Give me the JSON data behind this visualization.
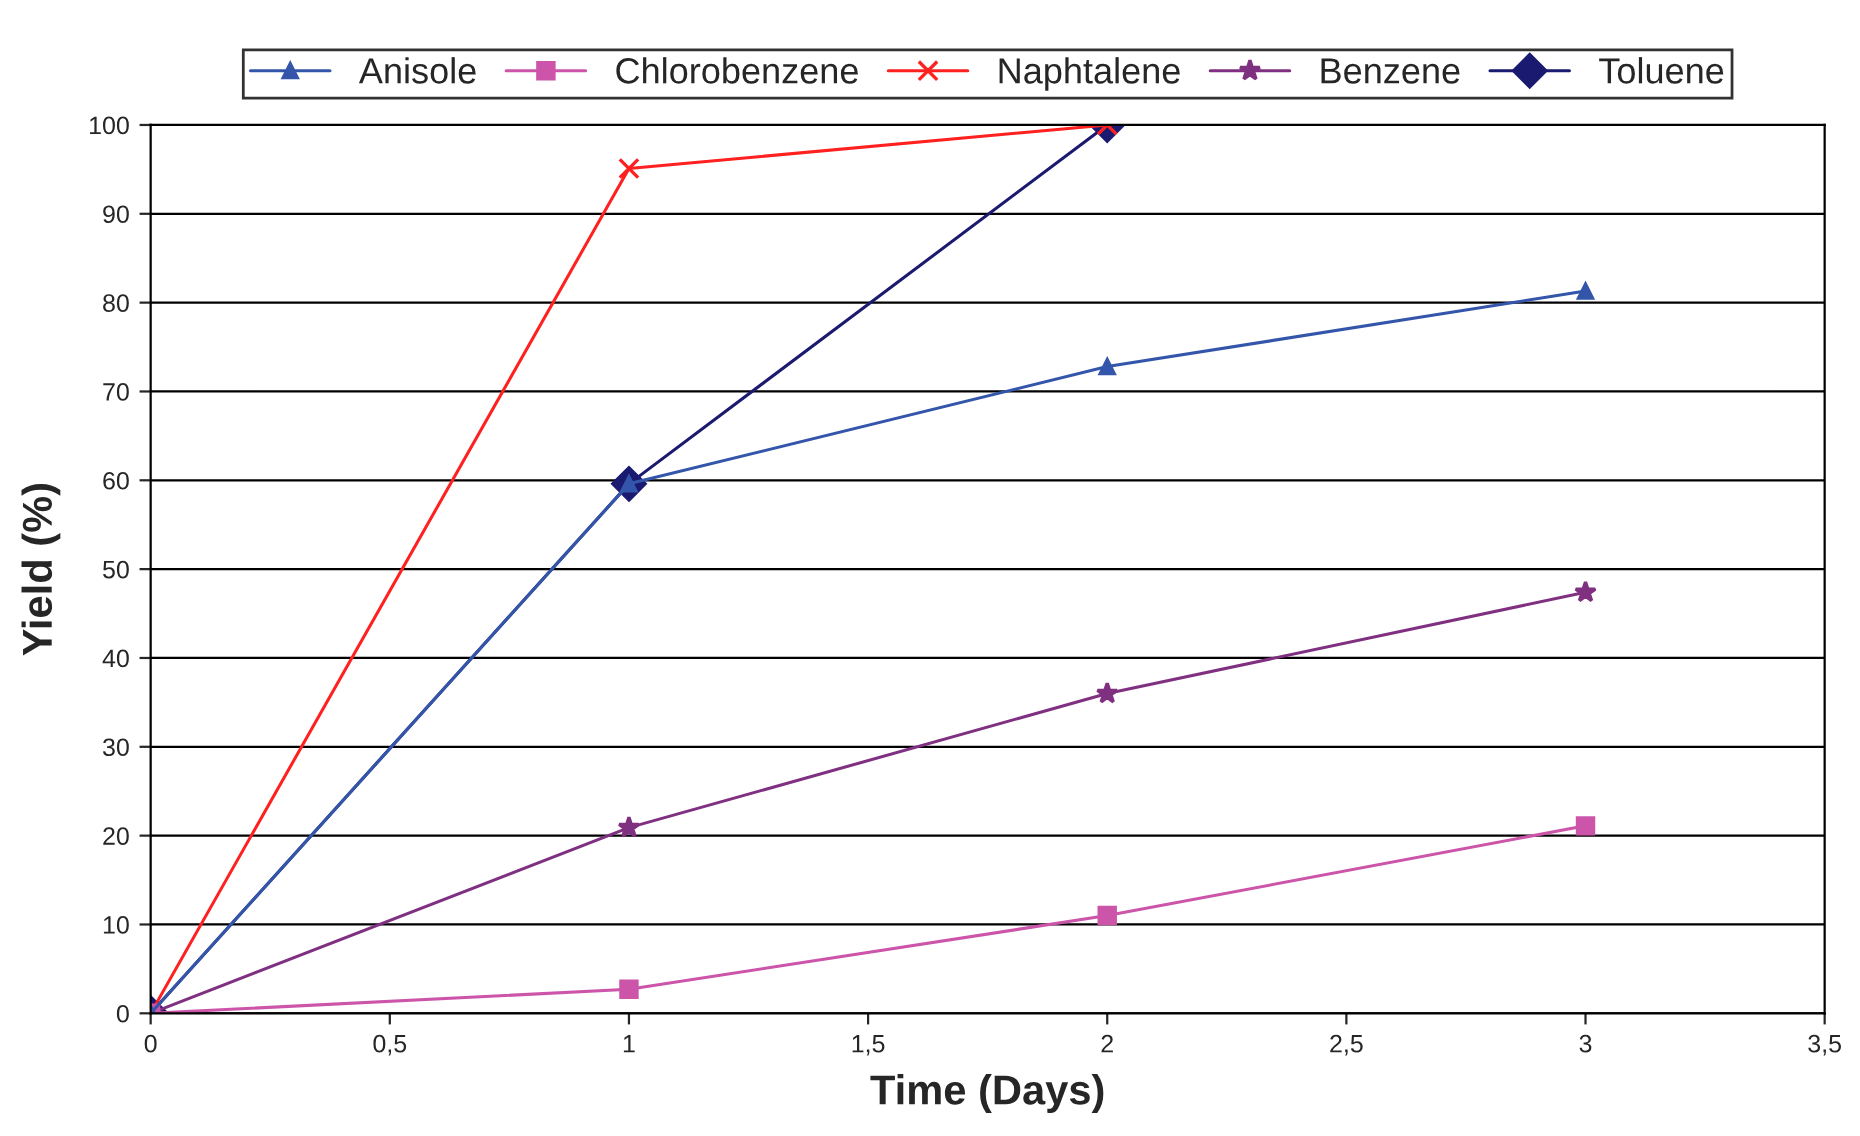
{
  "chart_data": {
    "type": "line",
    "xlabel": "Time (Days)",
    "ylabel": "Yield (%)",
    "xlim": [
      0,
      3.5
    ],
    "xticks": [
      0,
      {
        "value": 0.5,
        "label": "0,5"
      },
      1,
      {
        "value": 1.5,
        "label": "1,5"
      },
      2,
      {
        "value": 2.5,
        "label": "2,5"
      },
      3,
      {
        "value": 3.5,
        "label": "3,5"
      }
    ],
    "ylim": [
      0,
      100
    ],
    "yticks": [
      0,
      10,
      20,
      30,
      40,
      50,
      60,
      70,
      80,
      90,
      100
    ],
    "grid": "y",
    "legend": "top",
    "line_style": "solid",
    "series": [
      {
        "name": "Anisole",
        "color": "#3355aa",
        "marker": "triangle",
        "x": [
          0,
          1,
          2,
          3
        ],
        "values": [
          0,
          59.6,
          72.8,
          81.3
        ]
      },
      {
        "name": "Chlorobenzene",
        "color": "#cc55aa",
        "marker": "square",
        "x": [
          0,
          1,
          2,
          3
        ],
        "values": [
          0,
          2.7,
          11.0,
          21.1
        ]
      },
      {
        "name": "Naphtalene",
        "color": "#ff2020",
        "marker": "cross",
        "x": [
          0,
          1,
          2
        ],
        "values": [
          0,
          95.1,
          100
        ]
      },
      {
        "name": "Benzene",
        "color": "#803080",
        "marker": "star",
        "x": [
          0,
          1,
          2,
          3
        ],
        "values": [
          0,
          20.9,
          36.0,
          47.4
        ]
      },
      {
        "name": "Toluene",
        "color": "#1a1a70",
        "marker": "diamond",
        "x": [
          0,
          1,
          2
        ],
        "values": [
          0,
          59.6,
          100
        ]
      }
    ]
  }
}
